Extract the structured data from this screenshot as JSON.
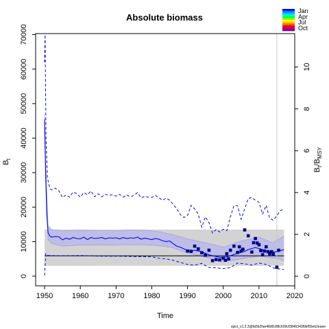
{
  "chart_data": {
    "type": "line",
    "title": "Absolute biomass",
    "xlabel": "Time",
    "ylabel": "B",
    "ylabel_sub": "t",
    "y2label": "B",
    "y2label_sub": "t",
    "y2label_rest": "/B",
    "y2label_sub2": "MSY",
    "xlim": [
      1947.5,
      2020
    ],
    "ylim": [
      -2800,
      70300
    ],
    "y2lim": [
      -0.46,
      11.6
    ],
    "x_ticks": [
      1950,
      1960,
      1970,
      1980,
      1990,
      2000,
      2010,
      2020
    ],
    "y_ticks": [
      0,
      10000,
      20000,
      30000,
      40000,
      50000,
      60000,
      70000
    ],
    "y2_ticks": [
      0,
      2,
      4,
      6,
      8,
      10
    ],
    "vline_x": 2015,
    "colors": {
      "estimate": "#0000ee",
      "ci_band": "#b8b8ea",
      "bmsy_band": "#d3d3d3",
      "points": "#00008b",
      "vline": "#c8c8c8"
    },
    "bmsy_band": {
      "lower": 3000,
      "upper": 13500,
      "line": 5900
    },
    "series": [
      {
        "name": "B_estimate",
        "x": [
          1950,
          1950.3,
          1950.6,
          1951,
          1951.5,
          1952,
          1953,
          1954,
          1955,
          1956,
          1957,
          1958,
          1959,
          1960,
          1961,
          1962,
          1963,
          1964,
          1965,
          1966,
          1967,
          1968,
          1969,
          1970,
          1971,
          1972,
          1973,
          1974,
          1975,
          1976,
          1977,
          1978,
          1979,
          1980,
          1981,
          1982,
          1983,
          1984,
          1985,
          1986,
          1987,
          1988,
          1989,
          1990,
          1991,
          1992,
          1993,
          1994,
          1995,
          1996,
          1997,
          1998,
          1999,
          2000,
          2001,
          2002,
          2003,
          2004,
          2005,
          2006,
          2007,
          2008,
          2009,
          2010,
          2011,
          2012,
          2013,
          2014,
          2015,
          2016,
          2017
        ],
        "values": [
          45500,
          30000,
          18000,
          12500,
          11600,
          11300,
          11500,
          11400,
          10500,
          11000,
          10700,
          11200,
          10900,
          10800,
          11300,
          10600,
          11200,
          10900,
          11000,
          11200,
          10800,
          11100,
          11000,
          11100,
          10800,
          11200,
          10900,
          11100,
          11000,
          11300,
          10700,
          11000,
          10800,
          10600,
          10900,
          10700,
          10300,
          10000,
          10200,
          9400,
          8700,
          8400,
          7900,
          7500,
          7200,
          7500,
          7300,
          7100,
          6600,
          6200,
          5900,
          5700,
          5500,
          5400,
          5600,
          5900,
          6300,
          6600,
          6900,
          7200,
          7700,
          8000,
          8300,
          8000,
          7700,
          7300,
          7000,
          7000,
          7100,
          7400,
          7700
        ]
      },
      {
        "name": "CI_upper",
        "x": [
          1950,
          1950.3,
          1951,
          1952,
          1955,
          1960,
          1965,
          1970,
          1975,
          1980,
          1983,
          1986,
          1990,
          1995,
          2000,
          2005,
          2010,
          2014,
          2015,
          2017
        ],
        "values": [
          47000,
          33000,
          14500,
          13500,
          13200,
          13300,
          13200,
          13200,
          13400,
          13200,
          12700,
          12000,
          10800,
          9700,
          8400,
          10200,
          11300,
          9600,
          10400,
          11600
        ]
      },
      {
        "name": "CI_lower",
        "x": [
          1950,
          1950.3,
          1951,
          1952,
          1955,
          1960,
          1965,
          1970,
          1975,
          1980,
          1983,
          1986,
          1990,
          1995,
          2000,
          2005,
          2010,
          2014,
          2015,
          2017
        ],
        "values": [
          43000,
          27500,
          10600,
          9500,
          8700,
          9000,
          9000,
          9000,
          9100,
          9000,
          8700,
          8200,
          6700,
          5500,
          4200,
          5000,
          5800,
          5200,
          5200,
          4500
        ]
      },
      {
        "name": "PI_upper",
        "x": [
          1950,
          1950.15,
          1950.4,
          1950.8,
          1951.5,
          1952,
          1953,
          1954,
          1955,
          1956,
          1957,
          1958,
          1959,
          1960,
          1961,
          1962,
          1963,
          1964,
          1965,
          1966,
          1967,
          1968,
          1969,
          1970,
          1971,
          1972,
          1973,
          1974,
          1975,
          1976,
          1977,
          1978,
          1979,
          1980,
          1981,
          1982,
          1983,
          1984,
          1985,
          1986,
          1987,
          1988,
          1989,
          1990,
          1991,
          1992,
          1993,
          1994,
          1995,
          1996,
          1997,
          1998,
          1999,
          2000,
          2001,
          2002,
          2003,
          2004,
          2005,
          2006,
          2007,
          2008,
          2009,
          2010,
          2011,
          2012,
          2013,
          2014,
          2015,
          2016,
          2017
        ],
        "values": [
          62000,
          70000,
          40000,
          28500,
          25300,
          25000,
          25500,
          24700,
          22800,
          23500,
          22900,
          24400,
          23900,
          22900,
          24200,
          23600,
          24700,
          23000,
          23900,
          23000,
          23700,
          23500,
          23600,
          23200,
          23700,
          22900,
          23500,
          23000,
          23400,
          24200,
          22700,
          23100,
          22900,
          22800,
          23400,
          22700,
          22000,
          22600,
          22000,
          20800,
          19500,
          17800,
          17000,
          17600,
          20500,
          19500,
          18000,
          14200,
          17200,
          15500,
          12500,
          13500,
          12800,
          13600,
          13200,
          17200,
          20500,
          20400,
          16500,
          19500,
          22500,
          22800,
          22000,
          21400,
          18000,
          20500,
          16800,
          16200,
          17500,
          19000,
          19500
        ]
      },
      {
        "name": "PI_lower",
        "x": [
          1950,
          1950.15,
          1950.3,
          1951,
          1955,
          1960,
          1965,
          1970,
          1975,
          1980,
          1982,
          1984,
          1986,
          1988,
          1990,
          1992,
          1994,
          1996,
          1998,
          2000,
          2002,
          2004,
          2006,
          2008,
          2010,
          2012,
          2014,
          2016,
          2017
        ],
        "values": [
          200,
          3000,
          6500,
          6000,
          5900,
          6000,
          5800,
          5800,
          5700,
          5600,
          5200,
          5000,
          4600,
          4000,
          3400,
          3200,
          3700,
          2500,
          2400,
          2200,
          2500,
          3800,
          3600,
          3200,
          3800,
          3400,
          2400,
          2000,
          1900
        ]
      },
      {
        "name": "Observations",
        "x": [
          1990,
          1991,
          1992,
          1993,
          1994,
          1995,
          1996,
          1997,
          1998,
          1999,
          2000,
          2000.6,
          2001,
          2001.5,
          2002,
          2003,
          2004,
          2004.5,
          2005,
          2005.5,
          2006,
          2007,
          2008,
          2008.5,
          2009,
          2009.5,
          2010,
          2010.5,
          2011,
          2011.5,
          2012,
          2012.5,
          2013,
          2013.5,
          2014,
          2015,
          2015.5
        ],
        "values": [
          7300,
          7200,
          8700,
          7900,
          6800,
          6100,
          7500,
          4500,
          4800,
          4700,
          5200,
          4600,
          6500,
          5000,
          7500,
          8700,
          6900,
          8500,
          7300,
          7800,
          13400,
          11700,
          7000,
          9700,
          10900,
          9600,
          9100,
          7400,
          6200,
          7300,
          8500,
          7100,
          6500,
          7100,
          6400,
          2600,
          7500
        ]
      }
    ]
  },
  "legend": {
    "labels": [
      "Jan",
      "Apr",
      "Jul",
      "Oct"
    ],
    "colors": [
      "#0000ff",
      "#0080ff",
      "#00c0ff",
      "#00ffc0",
      "#00ff40",
      "#80ff00",
      "#ffff00",
      "#ffc000",
      "#ff6000",
      "#ff0000",
      "#c00060",
      "#8000a0"
    ]
  },
  "footer": "spict_v1.2.3@fa5b2fae48d0c88c609cf3846343f9bf55eb2eaee"
}
